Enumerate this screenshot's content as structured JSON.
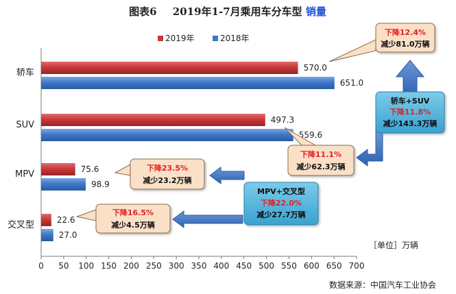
{
  "chart_data": {
    "type": "bar",
    "orientation": "horizontal",
    "title_prefix": "图表6",
    "title_main": "2019年1-7月乘用车分车型",
    "title_highlight": "销量",
    "categories": [
      "轿车",
      "SUV",
      "MPV",
      "交叉型"
    ],
    "series": [
      {
        "name": "2019年",
        "values": [
          570.0,
          497.3,
          75.6,
          22.6
        ],
        "color": "#c83a3a"
      },
      {
        "name": "2018年",
        "values": [
          651.0,
          559.6,
          98.9,
          27.0
        ],
        "color": "#3f78c8"
      }
    ],
    "xlim": [
      0,
      700
    ],
    "xticks": [
      0,
      50,
      100,
      150,
      200,
      250,
      300,
      350,
      400,
      450,
      500,
      550,
      600,
      650,
      700
    ],
    "unit_label": "［单位］万辆",
    "legend_position": "top",
    "grid": false,
    "source": "数据来源：中国汽车工业协会",
    "annotations": [
      {
        "id": "sedan",
        "line1": "下降12.4%",
        "line2": "减少81.0万辆"
      },
      {
        "id": "suv",
        "line1": "下降11.1%",
        "line2": "减少62.3万辆"
      },
      {
        "id": "mpv",
        "line1": "下降23.5%",
        "line2": "减少23.2万辆"
      },
      {
        "id": "cross",
        "line1": "下降16.5%",
        "line2": "减少4.5万辆"
      },
      {
        "id": "sedan_suv",
        "line0": "轿车+SUV",
        "line1": "下降11.8%",
        "line2": "减少143.3万辆"
      },
      {
        "id": "mpv_cross",
        "line0": "MPV+交叉型",
        "line1": "下降22.0%",
        "line2": "减少27.7万辆"
      }
    ],
    "colors": {
      "highlight_red": "#e02020",
      "title_blue": "#1f4fd8",
      "callout_fill": "#fbe0c8",
      "summary_fill": "#4fb1d9",
      "arrow_fill": "#3f78c8"
    }
  }
}
